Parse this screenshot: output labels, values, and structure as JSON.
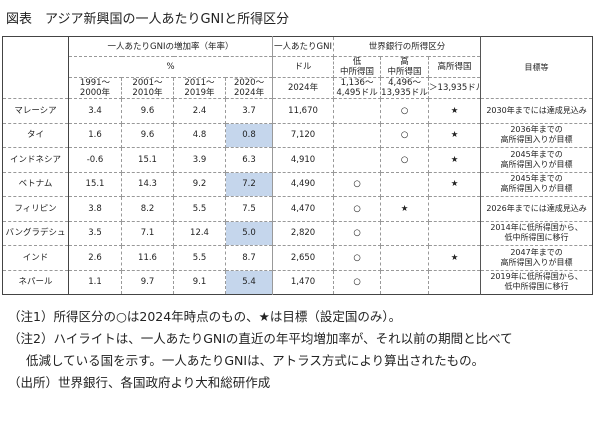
{
  "title": "図表　アジア新興国の一人あたりGNIと所得区分",
  "header": {
    "growth": "一人あたりGNIの増加率（年率）",
    "pct": "%",
    "periods": [
      [
        "1991～",
        "2000年"
      ],
      [
        "2001～",
        "2010年"
      ],
      [
        "2011～",
        "2019年"
      ],
      [
        "2020～",
        "2024年"
      ]
    ],
    "gni": "一人あたりGNI",
    "dollar": "ドル",
    "year": "2024年",
    "wb": "世界銀行の所得区分",
    "lm": [
      "低",
      "中所得国"
    ],
    "um": [
      "高",
      "中所得国"
    ],
    "hi": "高所得国",
    "lm_range": [
      "1,136～",
      "4,495ドル"
    ],
    "um_range": [
      "4,496～",
      "13,935ドル"
    ],
    "hi_range": "＞13,935ドル",
    "goal": "目標等"
  },
  "rows": [
    {
      "name": "マレーシア",
      "v": [
        "3.4",
        "9.6",
        "2.4",
        "3.7"
      ],
      "hl": false,
      "gni": "11,670",
      "lm": "",
      "um": "○",
      "hi": "★",
      "goal": [
        "2030年までには達成見込み"
      ]
    },
    {
      "name": "タイ",
      "v": [
        "1.6",
        "9.6",
        "4.8",
        "0.8"
      ],
      "hl": true,
      "gni": "7,120",
      "lm": "",
      "um": "○",
      "hi": "★",
      "goal": [
        "2036年までの",
        "高所得国入りが目標"
      ]
    },
    {
      "name": "インドネシア",
      "v": [
        "-0.6",
        "15.1",
        "3.9",
        "6.3"
      ],
      "hl": false,
      "gni": "4,910",
      "lm": "",
      "um": "○",
      "hi": "★",
      "goal": [
        "2045年までの",
        "高所得国入りが目標"
      ]
    },
    {
      "name": "ベトナム",
      "v": [
        "15.1",
        "14.3",
        "9.2",
        "7.2"
      ],
      "hl": true,
      "gni": "4,490",
      "lm": "○",
      "um": "",
      "hi": "★",
      "goal": [
        "2045年までの",
        "高所得国入りが目標"
      ]
    },
    {
      "name": "フィリピン",
      "v": [
        "3.8",
        "8.2",
        "5.5",
        "7.5"
      ],
      "hl": false,
      "gni": "4,470",
      "lm": "○",
      "um": "★",
      "hi": "",
      "goal": [
        "2026年までには達成見込み"
      ]
    },
    {
      "name": "バングラデシュ",
      "v": [
        "3.5",
        "7.1",
        "12.4",
        "5.0"
      ],
      "hl": true,
      "gni": "2,820",
      "lm": "○",
      "um": "",
      "hi": "",
      "goal": [
        "2014年に低所得国から、",
        "低中所得国に移行"
      ]
    },
    {
      "name": "インド",
      "v": [
        "2.6",
        "11.6",
        "5.5",
        "8.7"
      ],
      "hl": false,
      "gni": "2,650",
      "lm": "○",
      "um": "",
      "hi": "★",
      "goal": [
        "2047年までの",
        "高所得国入りが目標"
      ]
    },
    {
      "name": "ネパール",
      "v": [
        "1.1",
        "9.7",
        "9.1",
        "5.4"
      ],
      "hl": true,
      "gni": "1,470",
      "lm": "○",
      "um": "",
      "hi": "",
      "goal": [
        "2019年に低所得国から、",
        "低中所得国に移行"
      ]
    }
  ],
  "notes": [
    "（注1）所得区分の○は2024年時点のもの、★は目標（設定国のみ）。",
    "（注2）ハイライトは、一人あたりGNIの直近の年平均増加率が、それ以前の期間と比べて",
    "低減している国を示す。一人あたりGNIは、アトラス方式により算出されたもの。",
    "（出所）世界銀行、各国政府より大和総研作成"
  ]
}
